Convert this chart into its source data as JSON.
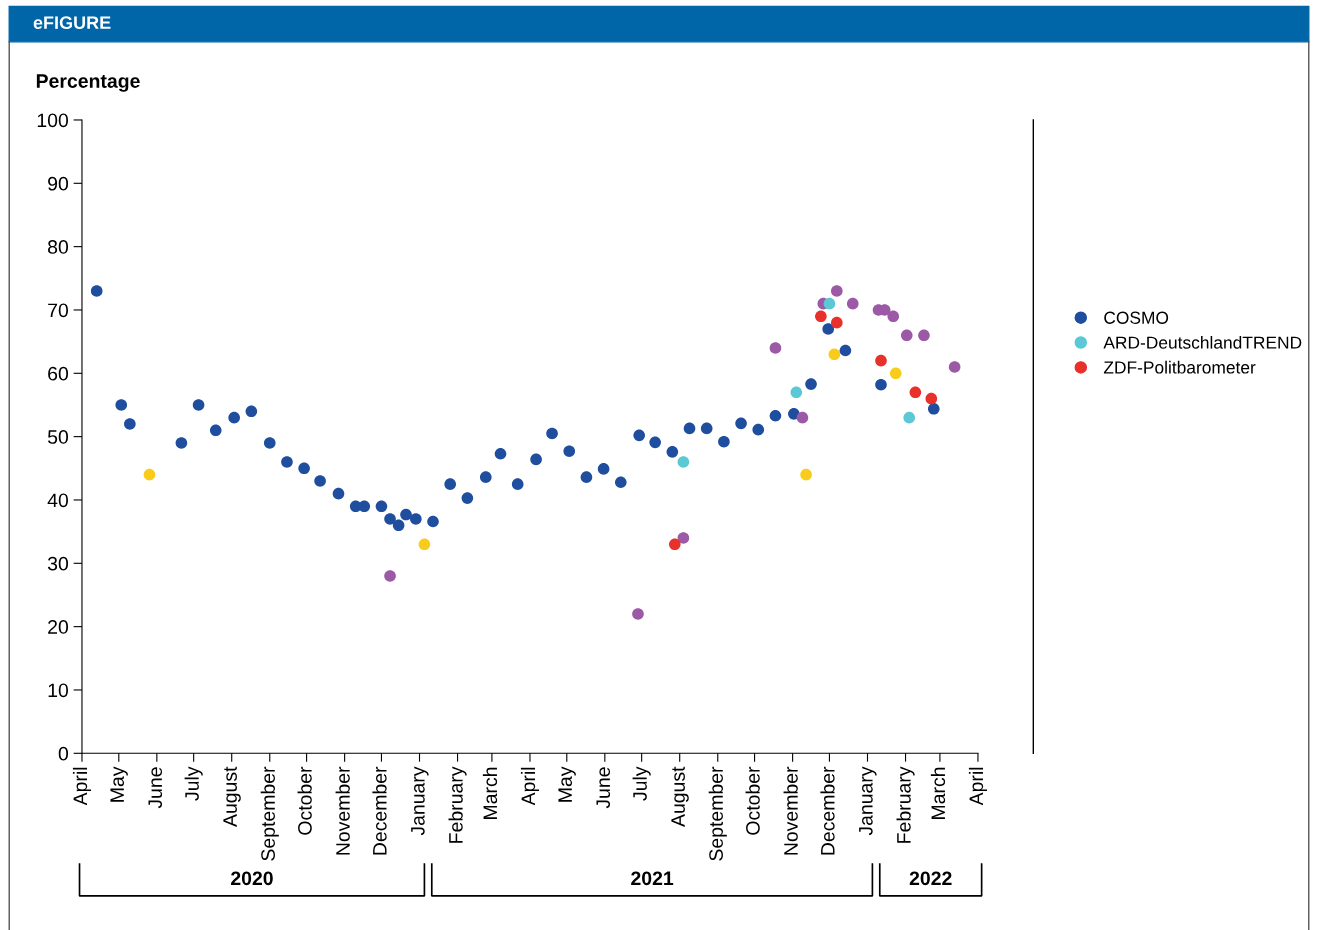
{
  "chart_data": {
    "type": "scatter",
    "title": "eFIGURE",
    "ylabel": "Percentage",
    "xlim": [
      "2020-04",
      "2022-04"
    ],
    "xticks": [
      {
        "value": "2020-04",
        "label": "April"
      },
      {
        "value": "2020-05",
        "label": "May"
      },
      {
        "value": "2020-06",
        "label": "June"
      },
      {
        "value": "2020-07",
        "label": "July"
      },
      {
        "value": "2020-08",
        "label": "August"
      },
      {
        "value": "2020-09",
        "label": "September"
      },
      {
        "value": "2020-10",
        "label": "October"
      },
      {
        "value": "2020-11",
        "label": "November"
      },
      {
        "value": "2020-12",
        "label": "December"
      },
      {
        "value": "2021-01",
        "label": "January"
      },
      {
        "value": "2021-02",
        "label": "February"
      },
      {
        "value": "2021-03",
        "label": "March"
      },
      {
        "value": "2021-04",
        "label": "April"
      },
      {
        "value": "2021-05",
        "label": "May"
      },
      {
        "value": "2021-06",
        "label": "June"
      },
      {
        "value": "2021-07",
        "label": "July"
      },
      {
        "value": "2021-08",
        "label": "August"
      },
      {
        "value": "2021-09",
        "label": "September"
      },
      {
        "value": "2021-10",
        "label": "October"
      },
      {
        "value": "2021-11",
        "label": "November"
      },
      {
        "value": "2021-12",
        "label": "December"
      },
      {
        "value": "2022-01",
        "label": "January"
      },
      {
        "value": "2022-02",
        "label": "February"
      },
      {
        "value": "2022-03",
        "label": "March"
      },
      {
        "value": "2022-04",
        "label": "April"
      }
    ],
    "ylim": [
      0,
      100
    ],
    "yticks": [
      0,
      10,
      20,
      30,
      40,
      50,
      60,
      70,
      80,
      90,
      100
    ],
    "grid": false,
    "legend": "right",
    "marker": "circle",
    "annotations": [
      "2020",
      "2021",
      "2022"
    ],
    "series": [
      {
        "color": "#f9cc1b",
        "x": [
          "2020-05-26",
          "2021-01-05",
          "2021-11-12",
          "2021-12-05",
          "2022-01-24"
        ],
        "values": [
          44,
          33,
          44,
          63,
          60
        ]
      },
      {
        "name": "COSMO",
        "color": "#1f4e9e",
        "x": [
          "2020-04-13",
          "2020-05-03",
          "2020-05-10",
          "2020-06-21",
          "2020-07-05",
          "2020-07-19",
          "2020-08-03",
          "2020-08-17",
          "2020-09-01",
          "2020-09-15",
          "2020-09-29",
          "2020-10-12",
          "2020-10-27",
          "2020-11-10",
          "2020-11-17",
          "2020-12-01",
          "2020-12-08",
          "2020-12-15",
          "2020-12-21",
          "2020-12-29",
          "2021-01-12",
          "2021-01-26",
          "2021-02-09",
          "2021-02-24",
          "2021-03-08",
          "2021-03-22",
          "2021-04-06",
          "2021-04-19",
          "2021-05-03",
          "2021-05-17",
          "2021-05-31",
          "2021-06-14",
          "2021-06-29",
          "2021-07-12",
          "2021-07-26",
          "2021-08-09",
          "2021-08-23",
          "2021-09-06",
          "2021-09-20",
          "2021-10-04",
          "2021-10-18",
          "2021-11-02",
          "2021-11-16",
          "2021-11-30",
          "2021-12-14",
          "2022-01-12",
          "2022-02-24"
        ],
        "values": [
          73,
          55,
          52,
          49,
          55,
          51,
          53,
          54,
          49,
          46,
          45,
          43,
          41,
          39,
          39,
          39,
          37,
          36,
          37.7,
          37,
          36.6,
          42.5,
          40.3,
          43.6,
          47.3,
          42.5,
          46.4,
          50.5,
          47.7,
          43.6,
          44.9,
          42.8,
          50.2,
          49.1,
          47.6,
          51.3,
          51.3,
          49.2,
          52.1,
          51.1,
          53.3,
          53.6,
          58.3,
          67,
          63.6,
          58.2,
          54.4
        ]
      },
      {
        "color": "#9b59a6",
        "x": [
          "2020-12-08",
          "2021-06-28",
          "2021-08-04",
          "2021-10-18",
          "2021-11-09",
          "2021-11-26",
          "2021-12-07",
          "2021-12-20",
          "2022-01-10",
          "2022-01-15",
          "2022-01-22",
          "2022-02-02",
          "2022-02-16",
          "2022-03-13"
        ],
        "values": [
          28,
          22,
          34,
          64,
          53,
          71,
          73,
          71,
          70,
          70,
          69,
          66,
          66,
          61
        ]
      },
      {
        "name": "ARD-DeutschlandTREND",
        "color": "#5bc8d6",
        "x": [
          "2021-08-04",
          "2021-11-04",
          "2021-12-01",
          "2022-02-04"
        ],
        "values": [
          46,
          57,
          71,
          53
        ]
      },
      {
        "name": "ZDF-Politbarometer",
        "color": "#e8312a",
        "x": [
          "2021-07-28",
          "2021-11-24",
          "2021-12-07",
          "2022-01-12",
          "2022-02-09",
          "2022-02-22"
        ],
        "values": [
          33,
          69,
          68,
          62,
          57,
          56
        ]
      }
    ]
  }
}
